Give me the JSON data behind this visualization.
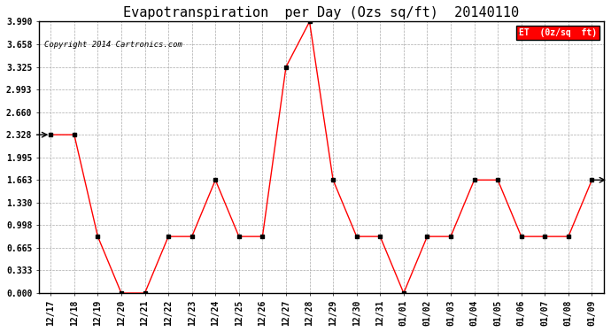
{
  "title": "Evapotranspiration  per Day (Ozs sq/ft)  20140110",
  "copyright": "Copyright 2014 Cartronics.com",
  "legend_label": "ET  (0z/sq  ft)",
  "x_labels": [
    "12/17",
    "12/18",
    "12/19",
    "12/20",
    "12/21",
    "12/22",
    "12/23",
    "12/24",
    "12/25",
    "12/26",
    "12/27",
    "12/28",
    "12/29",
    "12/30",
    "12/31",
    "01/01",
    "01/02",
    "01/03",
    "01/04",
    "01/05",
    "01/06",
    "01/07",
    "01/08",
    "01/09"
  ],
  "y_values": [
    2.328,
    2.328,
    0.832,
    0.0,
    0.0,
    0.832,
    0.832,
    1.663,
    0.832,
    0.832,
    3.325,
    3.99,
    1.663,
    0.832,
    0.832,
    0.0,
    0.832,
    0.832,
    1.663,
    1.663,
    0.832,
    0.832,
    0.832,
    1.663
  ],
  "yticks": [
    0.0,
    0.333,
    0.665,
    0.998,
    1.33,
    1.663,
    1.995,
    2.328,
    2.66,
    2.993,
    3.325,
    3.658,
    3.99
  ],
  "ymin": 0.0,
  "ymax": 3.99,
  "line_color": "red",
  "marker_color": "black",
  "background_color": "white",
  "grid_color": "#aaaaaa",
  "title_fontsize": 11,
  "axis_fontsize": 7,
  "legend_bg": "red",
  "legend_text_color": "white"
}
